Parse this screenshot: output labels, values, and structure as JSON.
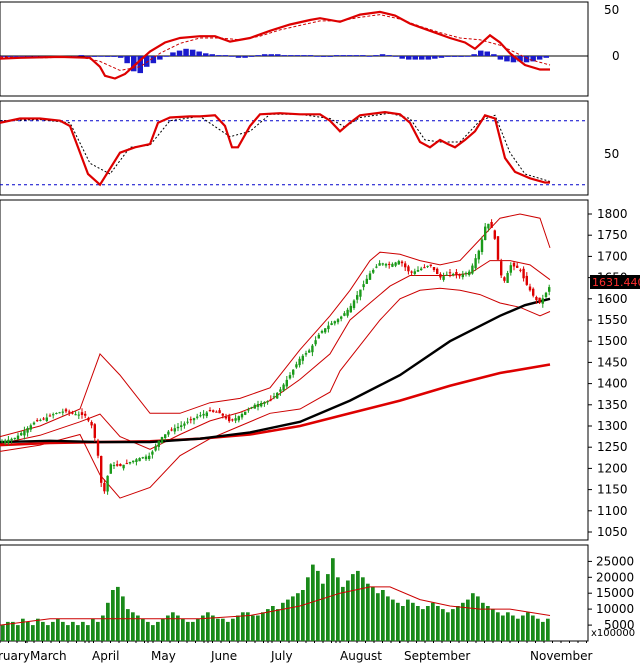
{
  "chart_data": {
    "type": "candlestick",
    "x_months": [
      "ruary",
      "March",
      "April",
      "May",
      "June",
      "July",
      "August",
      "September",
      "November"
    ],
    "macd_panel": {
      "ticks": [
        "50",
        "0"
      ],
      "macd_line": [
        [
          0,
          -3
        ],
        [
          20,
          -2
        ],
        [
          60,
          -1
        ],
        [
          90,
          -2
        ],
        [
          100,
          -12
        ],
        [
          105,
          -22
        ],
        [
          115,
          -25
        ],
        [
          125,
          -20
        ],
        [
          135,
          -10
        ],
        [
          150,
          5
        ],
        [
          165,
          15
        ],
        [
          180,
          20
        ],
        [
          200,
          22
        ],
        [
          215,
          22
        ],
        [
          230,
          16
        ],
        [
          250,
          20
        ],
        [
          270,
          28
        ],
        [
          290,
          35
        ],
        [
          310,
          40
        ],
        [
          320,
          42
        ],
        [
          340,
          38
        ],
        [
          360,
          46
        ],
        [
          380,
          49
        ],
        [
          395,
          45
        ],
        [
          410,
          36
        ],
        [
          430,
          28
        ],
        [
          450,
          20
        ],
        [
          465,
          15
        ],
        [
          475,
          8
        ],
        [
          490,
          23
        ],
        [
          500,
          15
        ],
        [
          510,
          3
        ],
        [
          525,
          -10
        ],
        [
          540,
          -15
        ],
        [
          550,
          -15
        ]
      ],
      "signal_line": [
        [
          0,
          -1
        ],
        [
          40,
          -2
        ],
        [
          80,
          -1
        ],
        [
          100,
          -6
        ],
        [
          120,
          -16
        ],
        [
          140,
          -12
        ],
        [
          160,
          3
        ],
        [
          180,
          14
        ],
        [
          200,
          20
        ],
        [
          220,
          20
        ],
        [
          240,
          18
        ],
        [
          260,
          22
        ],
        [
          280,
          29
        ],
        [
          300,
          34
        ],
        [
          320,
          39
        ],
        [
          340,
          39
        ],
        [
          360,
          43
        ],
        [
          380,
          46
        ],
        [
          400,
          41
        ],
        [
          420,
          33
        ],
        [
          440,
          26
        ],
        [
          460,
          20
        ],
        [
          480,
          18
        ],
        [
          500,
          12
        ],
        [
          515,
          4
        ],
        [
          530,
          -4
        ],
        [
          550,
          -10
        ]
      ],
      "histogram": [
        -1,
        -1,
        -1,
        0,
        -1,
        -1,
        0,
        0,
        -1,
        -1,
        0,
        0,
        1,
        -1,
        -1,
        0,
        -1,
        -1,
        -2,
        -8,
        -17,
        -19,
        -12,
        -8,
        -4,
        0,
        4,
        6,
        8,
        7,
        5,
        3,
        2,
        1,
        1,
        0,
        -2,
        -2,
        -1,
        1,
        2,
        2,
        2,
        1,
        1,
        1,
        1,
        1,
        0,
        -1,
        -1,
        1,
        1,
        1,
        1,
        1,
        0,
        1,
        2,
        1,
        0,
        -3,
        -4,
        -4,
        -4,
        -4,
        -3,
        -2,
        -1,
        -1,
        -1,
        0,
        2,
        6,
        5,
        2,
        -4,
        -6,
        -7,
        -6,
        -7,
        -6,
        -4,
        -2
      ]
    },
    "stoch_panel": {
      "ticks": [
        "50"
      ],
      "k_line": [
        [
          0,
          78
        ],
        [
          20,
          82
        ],
        [
          40,
          82
        ],
        [
          60,
          80
        ],
        [
          70,
          75
        ],
        [
          78,
          55
        ],
        [
          88,
          30
        ],
        [
          100,
          20
        ],
        [
          110,
          35
        ],
        [
          120,
          50
        ],
        [
          135,
          55
        ],
        [
          150,
          58
        ],
        [
          158,
          78
        ],
        [
          170,
          83
        ],
        [
          190,
          84
        ],
        [
          200,
          84
        ],
        [
          215,
          85
        ],
        [
          225,
          75
        ],
        [
          232,
          55
        ],
        [
          238,
          55
        ],
        [
          250,
          75
        ],
        [
          260,
          86
        ],
        [
          280,
          87
        ],
        [
          300,
          86
        ],
        [
          320,
          86
        ],
        [
          330,
          80
        ],
        [
          340,
          70
        ],
        [
          350,
          78
        ],
        [
          360,
          85
        ],
        [
          385,
          88
        ],
        [
          400,
          86
        ],
        [
          410,
          78
        ],
        [
          420,
          60
        ],
        [
          430,
          55
        ],
        [
          440,
          62
        ],
        [
          448,
          58
        ],
        [
          455,
          55
        ],
        [
          465,
          62
        ],
        [
          475,
          70
        ],
        [
          485,
          85
        ],
        [
          495,
          82
        ],
        [
          505,
          45
        ],
        [
          515,
          32
        ],
        [
          530,
          26
        ],
        [
          545,
          22
        ],
        [
          550,
          22
        ]
      ],
      "d_line": [
        [
          0,
          80
        ],
        [
          40,
          81
        ],
        [
          70,
          78
        ],
        [
          90,
          40
        ],
        [
          110,
          30
        ],
        [
          130,
          55
        ],
        [
          150,
          57
        ],
        [
          170,
          80
        ],
        [
          200,
          84
        ],
        [
          230,
          65
        ],
        [
          250,
          70
        ],
        [
          270,
          86
        ],
        [
          300,
          86
        ],
        [
          330,
          82
        ],
        [
          345,
          74
        ],
        [
          360,
          83
        ],
        [
          390,
          87
        ],
        [
          410,
          82
        ],
        [
          425,
          62
        ],
        [
          440,
          60
        ],
        [
          460,
          60
        ],
        [
          480,
          80
        ],
        [
          495,
          85
        ],
        [
          510,
          50
        ],
        [
          525,
          30
        ],
        [
          550,
          23
        ]
      ],
      "level_high": 80,
      "level_low": 20
    },
    "price_panel": {
      "y_ticks": [
        1800,
        1750,
        1700,
        1650,
        1600,
        1550,
        1500,
        1450,
        1400,
        1350,
        1300,
        1250,
        1200,
        1150,
        1100,
        1050
      ],
      "last_price_label": "1631.440",
      "close": [
        [
          0,
          1262
        ],
        [
          15,
          1272
        ],
        [
          25,
          1290
        ],
        [
          35,
          1310
        ],
        [
          45,
          1318
        ],
        [
          55,
          1330
        ],
        [
          65,
          1335
        ],
        [
          75,
          1328
        ],
        [
          85,
          1325
        ],
        [
          92,
          1300
        ],
        [
          97,
          1250
        ],
        [
          103,
          1130
        ],
        [
          110,
          1210
        ],
        [
          120,
          1205
        ],
        [
          130,
          1215
        ],
        [
          140,
          1225
        ],
        [
          150,
          1230
        ],
        [
          160,
          1270
        ],
        [
          170,
          1290
        ],
        [
          180,
          1300
        ],
        [
          195,
          1320
        ],
        [
          210,
          1335
        ],
        [
          220,
          1330
        ],
        [
          230,
          1310
        ],
        [
          240,
          1325
        ],
        [
          255,
          1350
        ],
        [
          270,
          1360
        ],
        [
          280,
          1385
        ],
        [
          290,
          1420
        ],
        [
          300,
          1460
        ],
        [
          310,
          1480
        ],
        [
          320,
          1520
        ],
        [
          330,
          1540
        ],
        [
          340,
          1555
        ],
        [
          350,
          1580
        ],
        [
          360,
          1620
        ],
        [
          370,
          1660
        ],
        [
          380,
          1685
        ],
        [
          390,
          1680
        ],
        [
          400,
          1690
        ],
        [
          410,
          1660
        ],
        [
          420,
          1670
        ],
        [
          430,
          1680
        ],
        [
          440,
          1650
        ],
        [
          450,
          1660
        ],
        [
          460,
          1655
        ],
        [
          470,
          1665
        ],
        [
          480,
          1720
        ],
        [
          485,
          1770
        ],
        [
          490,
          1780
        ],
        [
          495,
          1740
        ],
        [
          500,
          1660
        ],
        [
          505,
          1640
        ],
        [
          510,
          1680
        ],
        [
          515,
          1675
        ],
        [
          520,
          1670
        ],
        [
          525,
          1640
        ],
        [
          530,
          1620
        ],
        [
          535,
          1600
        ],
        [
          540,
          1590
        ],
        [
          545,
          1610
        ],
        [
          550,
          1631
        ]
      ],
      "ma100": [
        [
          0,
          1262
        ],
        [
          50,
          1265
        ],
        [
          100,
          1262
        ],
        [
          150,
          1262
        ],
        [
          200,
          1270
        ],
        [
          250,
          1285
        ],
        [
          300,
          1310
        ],
        [
          350,
          1360
        ],
        [
          400,
          1420
        ],
        [
          450,
          1500
        ],
        [
          500,
          1560
        ],
        [
          525,
          1585
        ],
        [
          550,
          1600
        ]
      ],
      "ma200": [
        [
          0,
          1255
        ],
        [
          50,
          1260
        ],
        [
          100,
          1262
        ],
        [
          150,
          1264
        ],
        [
          200,
          1270
        ],
        [
          250,
          1280
        ],
        [
          300,
          1300
        ],
        [
          350,
          1330
        ],
        [
          400,
          1360
        ],
        [
          450,
          1395
        ],
        [
          500,
          1425
        ],
        [
          550,
          1445
        ]
      ],
      "bb_upper": [
        [
          0,
          1275
        ],
        [
          40,
          1300
        ],
        [
          80,
          1340
        ],
        [
          100,
          1470
        ],
        [
          120,
          1420
        ],
        [
          150,
          1330
        ],
        [
          180,
          1330
        ],
        [
          210,
          1355
        ],
        [
          240,
          1365
        ],
        [
          270,
          1390
        ],
        [
          300,
          1480
        ],
        [
          330,
          1560
        ],
        [
          350,
          1620
        ],
        [
          370,
          1690
        ],
        [
          380,
          1710
        ],
        [
          400,
          1705
        ],
        [
          420,
          1690
        ],
        [
          440,
          1680
        ],
        [
          460,
          1690
        ],
        [
          480,
          1740
        ],
        [
          500,
          1790
        ],
        [
          520,
          1800
        ],
        [
          540,
          1790
        ],
        [
          550,
          1720
        ]
      ],
      "bb_lower": [
        [
          0,
          1240
        ],
        [
          40,
          1255
        ],
        [
          80,
          1280
        ],
        [
          100,
          1185
        ],
        [
          120,
          1130
        ],
        [
          150,
          1155
        ],
        [
          180,
          1230
        ],
        [
          210,
          1270
        ],
        [
          240,
          1300
        ],
        [
          270,
          1330
        ],
        [
          300,
          1340
        ],
        [
          330,
          1380
        ],
        [
          340,
          1430
        ],
        [
          360,
          1490
        ],
        [
          380,
          1550
        ],
        [
          400,
          1600
        ],
        [
          420,
          1620
        ],
        [
          440,
          1625
        ],
        [
          460,
          1620
        ],
        [
          480,
          1610
        ],
        [
          500,
          1590
        ],
        [
          520,
          1580
        ],
        [
          540,
          1560
        ],
        [
          550,
          1570
        ]
      ],
      "bb_mid": [
        [
          0,
          1258
        ],
        [
          40,
          1278
        ],
        [
          80,
          1310
        ],
        [
          100,
          1328
        ],
        [
          120,
          1275
        ],
        [
          150,
          1245
        ],
        [
          180,
          1280
        ],
        [
          210,
          1312
        ],
        [
          240,
          1332
        ],
        [
          270,
          1360
        ],
        [
          300,
          1410
        ],
        [
          330,
          1470
        ],
        [
          350,
          1550
        ],
        [
          370,
          1590
        ],
        [
          390,
          1630
        ],
        [
          410,
          1655
        ],
        [
          430,
          1655
        ],
        [
          450,
          1655
        ],
        [
          470,
          1660
        ],
        [
          490,
          1690
        ],
        [
          510,
          1690
        ],
        [
          530,
          1680
        ],
        [
          550,
          1645
        ]
      ]
    },
    "volume_panel": {
      "y_ticks": [
        25000,
        20000,
        15000,
        10000,
        5000
      ],
      "unit_label": "x100000",
      "volumes": [
        5,
        6,
        6,
        5,
        7,
        6,
        5,
        7,
        6,
        5,
        6,
        7,
        6,
        5,
        6,
        5,
        6,
        5,
        7,
        6,
        8,
        12,
        16,
        17,
        14,
        10,
        9,
        8,
        7,
        6,
        5,
        6,
        7,
        8,
        9,
        8,
        7,
        6,
        6,
        7,
        8,
        9,
        8,
        7,
        7,
        6,
        7,
        8,
        9,
        9,
        8,
        8,
        9,
        10,
        11,
        10,
        12,
        13,
        14,
        15,
        16,
        20,
        24,
        22,
        18,
        21,
        26,
        20,
        17,
        19,
        21,
        22,
        20,
        18,
        17,
        15,
        16,
        14,
        13,
        12,
        11,
        13,
        12,
        11,
        10,
        11,
        12,
        11,
        10,
        9,
        10,
        11,
        12,
        13,
        15,
        14,
        12,
        11,
        10,
        9,
        8,
        9,
        8,
        7,
        8,
        9,
        8,
        7,
        6,
        7
      ],
      "ma_line": [
        [
          0,
          5
        ],
        [
          50,
          7
        ],
        [
          100,
          7
        ],
        [
          150,
          7
        ],
        [
          200,
          7
        ],
        [
          250,
          8
        ],
        [
          300,
          11
        ],
        [
          340,
          15
        ],
        [
          370,
          17
        ],
        [
          390,
          17
        ],
        [
          420,
          13
        ],
        [
          450,
          11
        ],
        [
          480,
          10
        ],
        [
          510,
          10
        ],
        [
          550,
          8
        ]
      ]
    }
  }
}
